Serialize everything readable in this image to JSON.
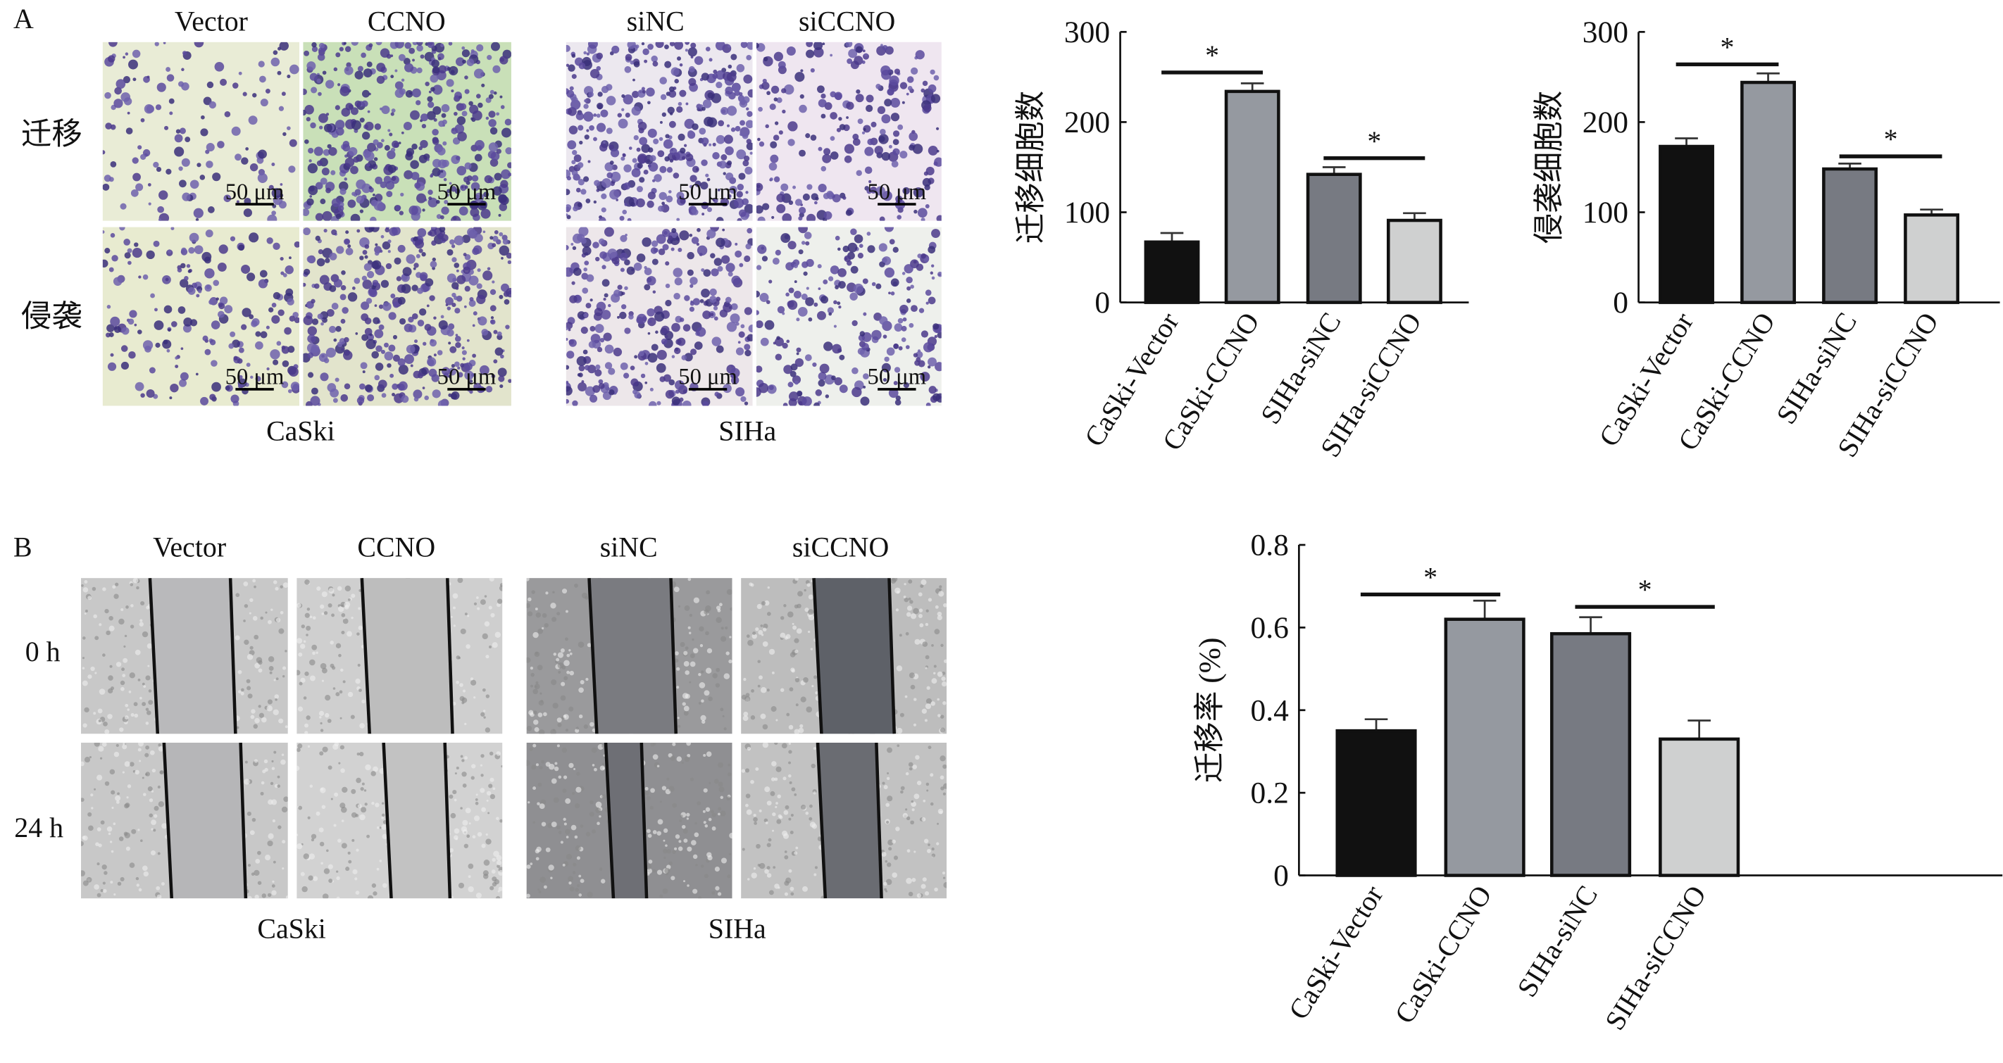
{
  "panel_a": {
    "letter": "A",
    "caski": {
      "col_labels": [
        "Vector",
        "CCNO"
      ],
      "cell_line": "CaSki"
    },
    "siha": {
      "col_labels": [
        "siNC",
        "siCCNO"
      ],
      "cell_line": "SIHa"
    },
    "row_labels": [
      "迁移",
      "侵袭"
    ],
    "scale_bar": "50 μm"
  },
  "panel_b": {
    "letter": "B",
    "caski": {
      "col_labels": [
        "Vector",
        "CCNO"
      ],
      "cell_line": "CaSki"
    },
    "siha": {
      "col_labels": [
        "siNC",
        "siCCNO"
      ],
      "cell_line": "SIHa"
    },
    "row_labels": [
      "0 h",
      "24 h"
    ]
  },
  "chart_data": [
    {
      "type": "bar",
      "ylabel": "迁移细胞数",
      "categories": [
        "CaSki-Vector",
        "CaSki-CCNO",
        "SIHa-siNC",
        "SIHa-siCCNO"
      ],
      "values": [
        67,
        234,
        142,
        91
      ],
      "errors": [
        10,
        9,
        8,
        8
      ],
      "ylim": [
        0,
        300
      ],
      "yticks": [
        "0",
        "100",
        "200",
        "300"
      ],
      "significance": [
        {
          "pair": [
            0,
            1
          ],
          "label": "*",
          "level": 255
        },
        {
          "pair": [
            2,
            3
          ],
          "label": "*",
          "level": 160
        }
      ],
      "bar_colors": [
        "#111111",
        "#9599a0",
        "#777a82",
        "#cfd0d0"
      ]
    },
    {
      "type": "bar",
      "ylabel": "侵袭细胞数",
      "categories": [
        "CaSki-Vector",
        "CaSki-CCNO",
        "SIHa-siNC",
        "SIHa-siCCNO"
      ],
      "values": [
        173,
        244,
        148,
        97
      ],
      "errors": [
        9,
        10,
        6,
        6
      ],
      "ylim": [
        0,
        300
      ],
      "yticks": [
        "0",
        "100",
        "200",
        "300"
      ],
      "significance": [
        {
          "pair": [
            0,
            1
          ],
          "label": "*",
          "level": 264
        },
        {
          "pair": [
            2,
            3
          ],
          "label": "*",
          "level": 162
        }
      ],
      "bar_colors": [
        "#111111",
        "#9599a0",
        "#777a82",
        "#cfd0d0"
      ]
    },
    {
      "type": "bar",
      "ylabel": "迁移率 (%)",
      "categories": [
        "CaSki-Vector",
        "CaSki-CCNO",
        "SIHa-siNC",
        "SIHa-siCCNO"
      ],
      "values": [
        0.35,
        0.62,
        0.585,
        0.33
      ],
      "errors": [
        0.028,
        0.045,
        0.04,
        0.045
      ],
      "ylim": [
        0,
        0.8
      ],
      "yticks": [
        "0",
        "0.2",
        "0.4",
        "0.6",
        "0.8"
      ],
      "significance": [
        {
          "pair": [
            0,
            1
          ],
          "label": "*",
          "level": 0.68
        },
        {
          "pair": [
            2,
            3
          ],
          "label": "*",
          "level": 0.65
        }
      ],
      "bar_colors": [
        "#111111",
        "#9599a0",
        "#777a82",
        "#cfd0d0"
      ]
    }
  ]
}
